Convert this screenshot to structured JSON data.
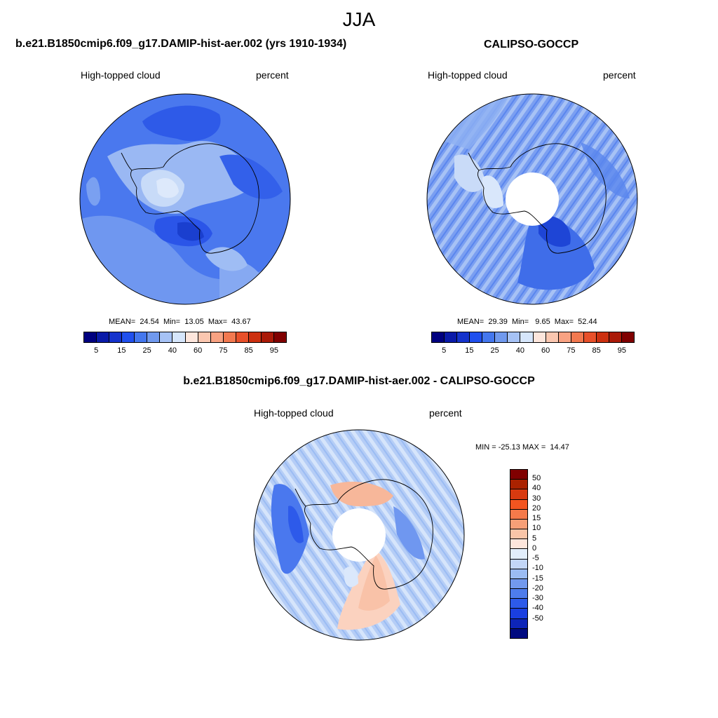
{
  "title": "JJA",
  "panels": {
    "model": {
      "title": "b.e21.B1850cmip6.f09_g17.DAMIP-hist-aer.002 (yrs 1910-1934)",
      "variable": "High-topped cloud",
      "units": "percent",
      "stats": "MEAN=  24.54  Min=  13.05  Max=  43.67"
    },
    "obs": {
      "title": "CALIPSO-GOCCP",
      "variable": "High-topped cloud",
      "units": "percent",
      "stats": "MEAN=  29.39  Min=   9.65  Max=  52.44"
    },
    "diff": {
      "title": "b.e21.B1850cmip6.f09_g17.DAMIP-hist-aer.002 - CALIPSO-GOCCP",
      "variable": "High-topped cloud",
      "units": "percent",
      "stats": "MIN = -25.13 MAX =  14.47"
    }
  },
  "colorbar_abs": {
    "colors": [
      "#00007f",
      "#0a1aa8",
      "#1533cc",
      "#2050ee",
      "#4477ee",
      "#7099ee",
      "#a6c2f5",
      "#d6e6fb",
      "#fde6dc",
      "#fbc7b0",
      "#f8a282",
      "#f27950",
      "#e8502a",
      "#cc3010",
      "#aa1a08",
      "#800000"
    ],
    "ticks": [
      "5",
      "15",
      "25",
      "40",
      "60",
      "75",
      "85",
      "95"
    ]
  },
  "colorbar_diff": {
    "colors": [
      "#800000",
      "#aa2200",
      "#d83a10",
      "#f25520",
      "#f57a4a",
      "#f79f77",
      "#fac5a8",
      "#fde6dc",
      "#e2eefb",
      "#c2d6f7",
      "#9bbcf3",
      "#7299ee",
      "#4e7cec",
      "#2d5aea",
      "#1a3fe0",
      "#0d25b8",
      "#000a80"
    ],
    "ticks": [
      "50",
      "40",
      "30",
      "20",
      "15",
      "10",
      "5",
      "0",
      "-5",
      "-10",
      "-15",
      "-20",
      "-30",
      "-40",
      "-50"
    ]
  }
}
